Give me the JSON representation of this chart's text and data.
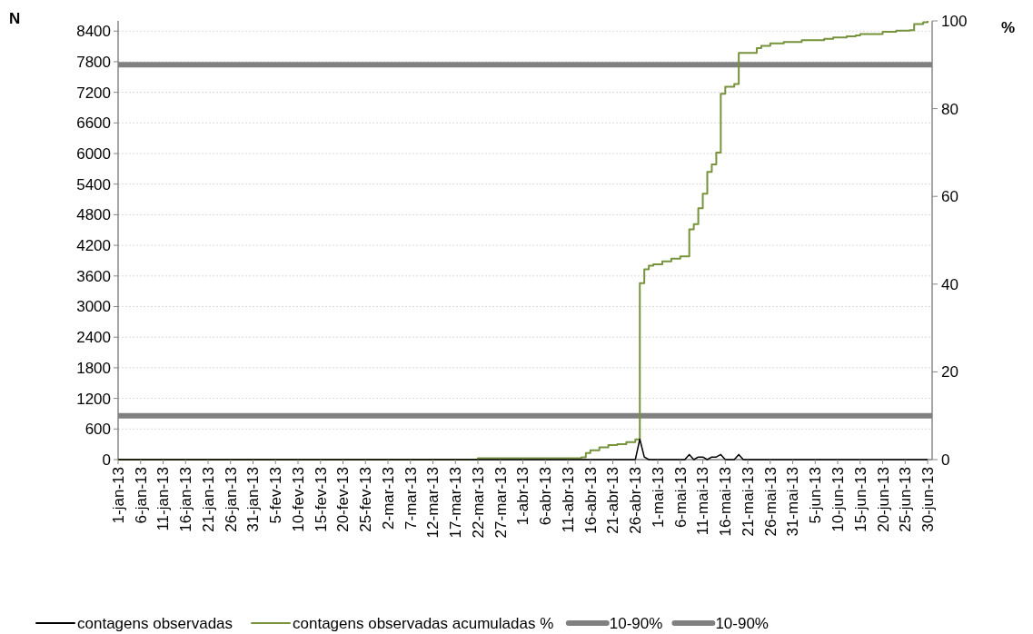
{
  "chart_data": {
    "type": "line",
    "ylabel": "N",
    "y2label": "%",
    "xlim": [
      "--01-01",
      "--07-01"
    ],
    "xticks": [
      {
        "value": "--01-01",
        "label": "1-jan-13"
      },
      {
        "value": "--01-06",
        "label": "6-jan-13"
      },
      {
        "value": "--01-11",
        "label": "11-jan-13"
      },
      {
        "value": "--01-16",
        "label": "16-jan-13"
      },
      {
        "value": "--01-21",
        "label": "21-jan-13"
      },
      {
        "value": "--01-26",
        "label": "26-jan-13"
      },
      {
        "value": "--01-31",
        "label": "31-jan-13"
      },
      {
        "value": "--02-05",
        "label": "5-fev-13"
      },
      {
        "value": "--02-10",
        "label": "10-fev-13"
      },
      {
        "value": "--02-15",
        "label": "15-fev-13"
      },
      {
        "value": "--02-20",
        "label": "20-fev-13"
      },
      {
        "value": "--02-25",
        "label": "25-fev-13"
      },
      {
        "value": "--03-02",
        "label": "2-mar-13"
      },
      {
        "value": "--03-07",
        "label": "7-mar-13"
      },
      {
        "value": "--03-12",
        "label": "12-mar-13"
      },
      {
        "value": "--03-17",
        "label": "17-mar-13"
      },
      {
        "value": "--03-22",
        "label": "22-mar-13"
      },
      {
        "value": "--03-27",
        "label": "27-mar-13"
      },
      {
        "value": "--04-01",
        "label": "1-abr-13"
      },
      {
        "value": "--04-06",
        "label": "6-abr-13"
      },
      {
        "value": "--04-11",
        "label": "11-abr-13"
      },
      {
        "value": "--04-16",
        "label": "16-abr-13"
      },
      {
        "value": "--04-21",
        "label": "21-abr-13"
      },
      {
        "value": "--04-26",
        "label": "26-abr-13"
      },
      {
        "value": "--05-01",
        "label": "1-mai-13"
      },
      {
        "value": "--05-06",
        "label": "6-mai-13"
      },
      {
        "value": "--05-11",
        "label": "11-mai-13"
      },
      {
        "value": "--05-16",
        "label": "16-mai-13"
      },
      {
        "value": "--05-21",
        "label": "21-mai-13"
      },
      {
        "value": "--05-26",
        "label": "26-mai-13"
      },
      {
        "value": "--05-31",
        "label": "31-mai-13"
      },
      {
        "value": "--06-05",
        "label": "5-jun-13"
      },
      {
        "value": "--06-10",
        "label": "10-jun-13"
      },
      {
        "value": "--06-15",
        "label": "15-jun-13"
      },
      {
        "value": "--06-20",
        "label": "20-jun-13"
      },
      {
        "value": "--06-25",
        "label": "25-jun-13"
      },
      {
        "value": "--06-30",
        "label": "30-jun-13"
      }
    ],
    "ylim": [
      0,
      8600
    ],
    "yticks": [
      0,
      600,
      1200,
      1800,
      2400,
      3000,
      3600,
      4200,
      4800,
      5400,
      6000,
      6600,
      7200,
      7800,
      8400
    ],
    "y2lim": [
      0,
      100
    ],
    "y2ticks": [
      0,
      20,
      40,
      60,
      80,
      100
    ],
    "grid": "y",
    "legend": "bottom",
    "series": [
      {
        "name": "contagens observadas",
        "color": "#000000",
        "x": [
          "--01-01",
          "--04-26",
          "--04-27",
          "--04-28",
          "--04-29",
          "--05-07",
          "--05-08",
          "--05-09",
          "--05-10",
          "--05-11",
          "--05-12",
          "--05-13",
          "--05-14",
          "--05-15",
          "--05-16",
          "--05-18",
          "--05-19",
          "--05-20",
          "--05-22",
          "--05-23",
          "--05-25",
          "--05-26",
          "--06-25",
          "--06-26",
          "--06-27",
          "--06-30"
        ],
        "values": [
          0,
          0,
          400,
          50,
          0,
          0,
          100,
          0,
          50,
          50,
          0,
          50,
          50,
          100,
          0,
          0,
          100,
          0,
          0,
          0,
          0,
          0,
          0,
          0,
          0,
          0
        ]
      },
      {
        "name": "contagens observadas acumuladas %",
        "type": "step",
        "axis": "y2",
        "color": "#77933c",
        "x": [
          "--01-01",
          "--03-22",
          "--04-14",
          "--04-15",
          "--04-16",
          "--04-18",
          "--04-20",
          "--04-22",
          "--04-24",
          "--04-26",
          "--04-27",
          "--04-28",
          "--04-29",
          "--04-30",
          "--05-02",
          "--05-04",
          "--05-06",
          "--05-08",
          "--05-09",
          "--05-10",
          "--05-11",
          "--05-12",
          "--05-13",
          "--05-14",
          "--05-15",
          "--05-16",
          "--05-18",
          "--05-19",
          "--05-23",
          "--05-24",
          "--05-26",
          "--05-29",
          "--06-02",
          "--06-07",
          "--06-09",
          "--06-12",
          "--06-14",
          "--06-15",
          "--06-20",
          "--06-23",
          "--06-26",
          "--06-27",
          "--06-29",
          "--06-30"
        ],
        "values": [
          0,
          0.3,
          0.5,
          1.5,
          2.1,
          2.8,
          3.3,
          3.5,
          4.0,
          4.6,
          40.2,
          43.4,
          44.2,
          44.5,
          45.2,
          45.8,
          46.3,
          52.5,
          53.7,
          57.3,
          60.6,
          65.6,
          67.3,
          70.0,
          83.4,
          85.0,
          85.6,
          92.7,
          93.8,
          94.3,
          94.9,
          95.2,
          95.6,
          95.9,
          96.2,
          96.5,
          96.7,
          97.0,
          97.5,
          97.8,
          97.9,
          99.3,
          99.7,
          100
        ]
      },
      {
        "name": "10-90%",
        "axis": "y2",
        "color": "#808080",
        "x": [
          "--01-01",
          "--07-01"
        ],
        "values": [
          10,
          10
        ]
      },
      {
        "name": "10-90%",
        "axis": "y2",
        "color": "#808080",
        "x": [
          "--01-01",
          "--07-01"
        ],
        "values": [
          90,
          90
        ]
      }
    ]
  }
}
